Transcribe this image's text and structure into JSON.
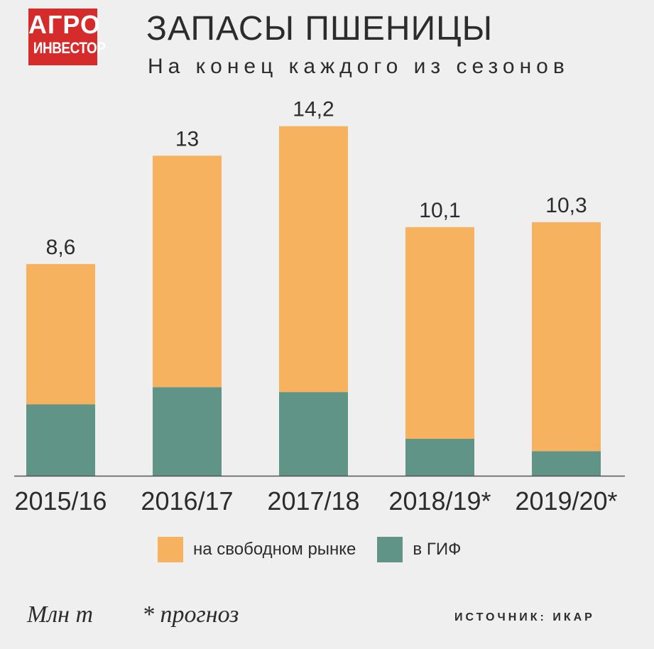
{
  "logo": {
    "line1": "АГРО",
    "line2": "ИНВЕСТОР"
  },
  "header": {
    "title": "ЗАПАСЫ ПШЕНИЦЫ",
    "subtitle": "На конец каждого из сезонов"
  },
  "colors": {
    "free_market": "#f6b25e",
    "gif": "#5f9486",
    "logo_red": "#d62b2b",
    "axis": "#555555"
  },
  "chart_data": {
    "type": "bar",
    "stacked": true,
    "title": "ЗАПАСЫ ПШЕНИЦЫ",
    "subtitle": "На конец каждого из сезонов",
    "categories": [
      "2015/16",
      "2016/17",
      "2017/18",
      "2018/19*",
      "2019/20*"
    ],
    "totals": [
      8.6,
      13,
      14.2,
      10.1,
      10.3
    ],
    "total_labels": [
      "8,6",
      "13",
      "14,2",
      "10,1",
      "10,3"
    ],
    "series": [
      {
        "name": "в ГИФ",
        "color": "#5f9486",
        "values": [
          2.9,
          3.6,
          3.4,
          1.5,
          1.0
        ]
      },
      {
        "name": "на свободном рынке",
        "color": "#f6b25e",
        "values": [
          5.7,
          9.4,
          10.8,
          8.6,
          9.3
        ]
      }
    ],
    "ylim": [
      0,
      15
    ],
    "grid": false,
    "legend_position": "bottom"
  },
  "legend": [
    {
      "label": "на свободном рынке",
      "color": "#f6b25e"
    },
    {
      "label": "в ГИФ",
      "color": "#5f9486"
    }
  ],
  "footer": {
    "unit": "Млн т",
    "note": "* прогноз",
    "source": "ИСТОЧНИК: ИКАР"
  }
}
